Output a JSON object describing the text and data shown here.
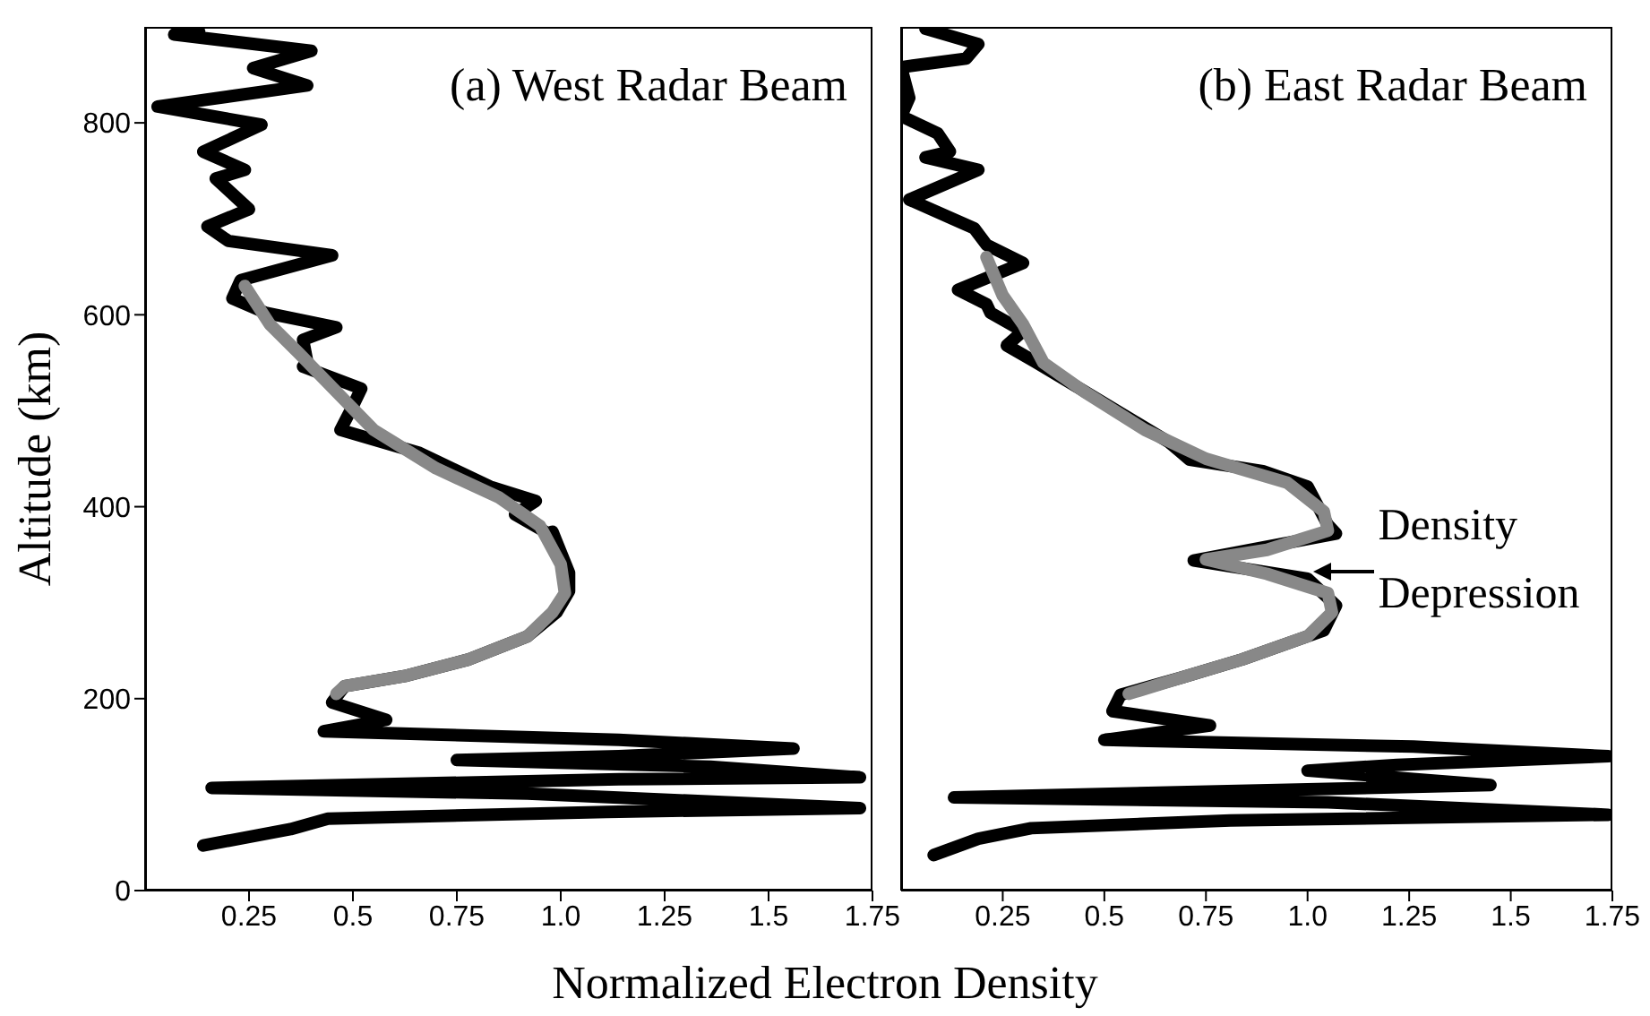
{
  "chart_data": [
    {
      "type": "line",
      "title": "(a) West Radar Beam",
      "xlabel": "Normalized Electron Density",
      "ylabel": "Altitude (km)",
      "xlim": [
        0,
        1.75
      ],
      "xticks": [
        0.25,
        0.5,
        0.75,
        {
          "value": 1,
          "label": "1.0"
        },
        1.25,
        1.5,
        1.75
      ],
      "ylim": [
        0,
        900
      ],
      "yticks": [
        0,
        200,
        400,
        600,
        800
      ],
      "series": [
        {
          "color": "#000000",
          "x": [
            0.13,
            0.07,
            0.4,
            0.26,
            0.39,
            0.03,
            0.28,
            0.14,
            0.24,
            0.17,
            0.25,
            0.15,
            0.2,
            0.45,
            0.23,
            0.21,
            0.29,
            0.46,
            0.38,
            0.39,
            0.38,
            0.52,
            0.5,
            0.47,
            0.66,
            0.83,
            0.94,
            0.89,
            0.97,
            0.98,
            1.02,
            1.02,
            0.99,
            0.92,
            0.78,
            0.63,
            0.48,
            0.45,
            0.58,
            0.43,
            1.14,
            1.56,
            1.14,
            0.75,
            1.36,
            1.72,
            1.14,
            0.16,
            0.92,
            1.72,
            1.11,
            0.44,
            0.35,
            0.14
          ],
          "values": [
            895,
            892,
            875,
            857,
            839,
            817,
            798,
            770,
            751,
            742,
            710,
            692,
            677,
            662,
            636,
            617,
            602,
            587,
            574,
            551,
            546,
            523,
            505,
            480,
            456,
            421,
            406,
            392,
            372,
            374,
            331,
            312,
            290,
            265,
            241,
            224,
            213,
            196,
            178,
            166,
            157,
            148,
            140,
            136,
            129,
            118,
            116,
            107,
            101,
            86,
            82,
            75,
            64,
            47
          ]
        },
        {
          "color": "#888888",
          "x": [
            0.24,
            0.3,
            0.37,
            0.46,
            0.55,
            0.7,
            0.85,
            0.95,
            1.0,
            1.01,
            0.98,
            0.92,
            0.78,
            0.63,
            0.48,
            0.46
          ],
          "values": [
            630,
            590,
            560,
            520,
            480,
            440,
            410,
            380,
            340,
            310,
            290,
            265,
            241,
            224,
            213,
            205
          ]
        }
      ]
    },
    {
      "type": "line",
      "title": "(b) East Radar Beam",
      "tick_labels": "x",
      "xlim": [
        0,
        1.75
      ],
      "xticks": [
        0.25,
        0.5,
        0.75,
        {
          "value": 1,
          "label": "1.0"
        },
        1.25,
        1.5,
        1.75
      ],
      "ylim": [
        0,
        900
      ],
      "yticks": [
        0,
        200,
        400,
        600,
        800
      ],
      "annotations": [
        "Density Depression"
      ],
      "series": [
        {
          "color": "#000000",
          "x": [
            0.06,
            0.19,
            0.16,
            0.0,
            0.02,
            0.0,
            0.09,
            0.12,
            0.06,
            0.19,
            0.02,
            0.18,
            0.21,
            0.3,
            0.14,
            0.21,
            0.22,
            0.3,
            0.26,
            0.33,
            0.44,
            0.66,
            0.71,
            0.89,
            1.0,
            1.05,
            1.07,
            0.72,
            1.0,
            1.07,
            1.04,
            0.84,
            0.69,
            0.54,
            0.52,
            0.76,
            0.5,
            1.26,
            1.74,
            1.22,
            1.0,
            1.45,
            0.13,
            1.05,
            1.74,
            0.81,
            0.32,
            0.19,
            0.08
          ],
          "values": [
            898,
            882,
            867,
            858,
            826,
            807,
            789,
            770,
            764,
            751,
            720,
            690,
            673,
            654,
            626,
            611,
            602,
            583,
            568,
            551,
            523,
            467,
            449,
            437,
            421,
            381,
            372,
            344,
            325,
            297,
            271,
            241,
            222,
            204,
            187,
            172,
            157,
            150,
            140,
            131,
            125,
            110,
            97,
            92,
            79,
            73,
            65,
            54,
            37
          ]
        },
        {
          "color": "#888888",
          "x": [
            0.21,
            0.25,
            0.3,
            0.35,
            0.45,
            0.6,
            0.75,
            0.95,
            1.04,
            1.05,
            0.9,
            0.75,
            0.9,
            1.05,
            1.06,
            1.0,
            0.84,
            0.69,
            0.56
          ],
          "values": [
            660,
            620,
            590,
            550,
            520,
            480,
            450,
            425,
            395,
            375,
            355,
            345,
            330,
            310,
            290,
            265,
            241,
            222,
            205
          ]
        }
      ]
    }
  ]
}
